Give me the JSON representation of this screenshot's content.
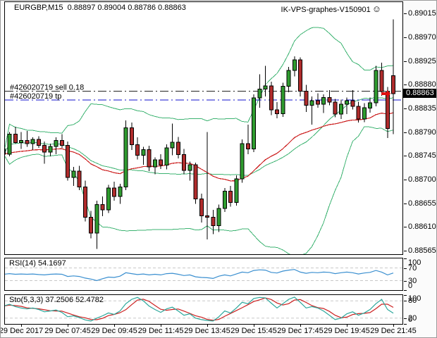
{
  "window": {
    "title": "EURGBP,M15  0.88897 0.89004 0.88786 0.88863",
    "watermark": "IK-VPS-graphes-V150901",
    "smiley": "☺"
  },
  "colors": {
    "bull": "#2f9c2f",
    "bear": "#b02c2c",
    "wick": "#000000",
    "bands": "#3cb371",
    "ma": "#cc2020",
    "rsi": "#3a8fd0",
    "sto_k": "#2aa79b",
    "sto_d": "#cc2020",
    "level_dash": "#c8c8c8",
    "sell_line": "#222222",
    "tp_line": "#1010cc",
    "price_tag_bg": "#000000",
    "price_tag_fg": "#ffffff",
    "arrow": "#e01010"
  },
  "orders": {
    "sell": {
      "label": "#426020719 sell 0.18",
      "price": 0.88868
    },
    "tp": {
      "label": "#426020719 tp",
      "price": 0.88851
    }
  },
  "price_axis": {
    "labels": [
      "0.89015",
      "0.88970",
      "0.88925",
      "0.88880",
      "0.88835",
      "0.88790",
      "0.88745",
      "0.88700",
      "0.88655",
      "0.88610",
      "0.88565"
    ],
    "current": "0.88863"
  },
  "time_axis": {
    "labels": [
      "29 Dec 2017",
      "29 Dec 07:45",
      "29 Dec 09:45",
      "29 Dec 11:45",
      "29 Dec 13:45",
      "29 Dec 15:45",
      "29 Dec 17:45",
      "29 Dec 19:45",
      "29 Dec 21:45"
    ]
  },
  "indicators": {
    "rsi": {
      "label": "RSI(14) 54.1697",
      "axis_labels": [
        "100",
        "70",
        "30",
        "0"
      ],
      "axis_values": [
        100,
        70,
        30,
        0
      ],
      "dash_levels": [
        70,
        30
      ]
    },
    "sto": {
      "label": "Sto(5,3,3) 37.2506 52.4782",
      "axis_labels": [
        "100",
        "80",
        "20",
        "0"
      ],
      "axis_values": [
        100,
        80,
        20,
        0
      ],
      "dash_levels": [
        80,
        20
      ]
    }
  },
  "chart_data": [
    {
      "type": "candlestick",
      "symbol": "EURGBP",
      "timeframe": "M15",
      "title_ohlc": {
        "open": 0.88897,
        "high": 0.89004,
        "low": 0.88786,
        "close": 0.88863
      },
      "ylim": [
        0.88558,
        0.89037
      ],
      "x_start": "29 Dec 05:00",
      "interval_minutes": 15,
      "x_label_indices": [
        3,
        11,
        19,
        27,
        35,
        43,
        51,
        59,
        67
      ],
      "overlays": {
        "bollinger": {
          "period": 20,
          "deviation": 2
        },
        "ma": {
          "period": 28,
          "type": "ema"
        }
      },
      "candles": [
        [
          0.88758,
          0.88768,
          0.8874,
          0.88748
        ],
        [
          0.88748,
          0.8879,
          0.88744,
          0.88786
        ],
        [
          0.88786,
          0.888,
          0.88768,
          0.8877
        ],
        [
          0.8877,
          0.8879,
          0.88758,
          0.88774
        ],
        [
          0.88774,
          0.88792,
          0.88762,
          0.88768
        ],
        [
          0.88768,
          0.8878,
          0.88756,
          0.88776
        ],
        [
          0.88776,
          0.88782,
          0.8876,
          0.88765
        ],
        [
          0.88765,
          0.88772,
          0.8873,
          0.88752
        ],
        [
          0.88752,
          0.88768,
          0.88744,
          0.88763
        ],
        [
          0.88763,
          0.8878,
          0.88748,
          0.88774
        ],
        [
          0.88774,
          0.88786,
          0.8876,
          0.88765
        ],
        [
          0.88765,
          0.88772,
          0.88698,
          0.88704
        ],
        [
          0.88704,
          0.88724,
          0.88688,
          0.88716
        ],
        [
          0.88716,
          0.88726,
          0.8868,
          0.88686
        ],
        [
          0.88686,
          0.88698,
          0.8862,
          0.88628
        ],
        [
          0.88628,
          0.8864,
          0.88588,
          0.88598
        ],
        [
          0.88598,
          0.8866,
          0.88568,
          0.88652
        ],
        [
          0.88652,
          0.88668,
          0.8863,
          0.88642
        ],
        [
          0.88642,
          0.8869,
          0.88636,
          0.88684
        ],
        [
          0.88684,
          0.88696,
          0.8866,
          0.88668
        ],
        [
          0.88668,
          0.88692,
          0.88654,
          0.88686
        ],
        [
          0.88686,
          0.88812,
          0.8868,
          0.88798
        ],
        [
          0.88798,
          0.88808,
          0.88756,
          0.88766
        ],
        [
          0.88766,
          0.8878,
          0.88738,
          0.88746
        ],
        [
          0.88746,
          0.88762,
          0.88728,
          0.88757
        ],
        [
          0.88757,
          0.88764,
          0.88716,
          0.88724
        ],
        [
          0.88724,
          0.88742,
          0.8871,
          0.88737
        ],
        [
          0.88737,
          0.88748,
          0.8872,
          0.88727
        ],
        [
          0.88727,
          0.88767,
          0.88719,
          0.8876
        ],
        [
          0.8876,
          0.88806,
          0.88746,
          0.88771
        ],
        [
          0.88771,
          0.88781,
          0.8874,
          0.88747
        ],
        [
          0.88747,
          0.88758,
          0.8871,
          0.88717
        ],
        [
          0.88717,
          0.88734,
          0.88698,
          0.88728
        ],
        [
          0.88728,
          0.88732,
          0.88654,
          0.88663
        ],
        [
          0.88663,
          0.88673,
          0.88618,
          0.88631
        ],
        [
          0.88631,
          0.8879,
          0.88586,
          0.88628
        ],
        [
          0.88628,
          0.88642,
          0.88596,
          0.88612
        ],
        [
          0.88612,
          0.88652,
          0.886,
          0.88645
        ],
        [
          0.88645,
          0.88684,
          0.88638,
          0.88678
        ],
        [
          0.88678,
          0.88688,
          0.88648,
          0.88656
        ],
        [
          0.88656,
          0.88708,
          0.8865,
          0.88701
        ],
        [
          0.88701,
          0.88776,
          0.88694,
          0.88768
        ],
        [
          0.88768,
          0.88804,
          0.88748,
          0.88758
        ],
        [
          0.88758,
          0.88862,
          0.88752,
          0.88855
        ],
        [
          0.88855,
          0.889,
          0.88836,
          0.88872
        ],
        [
          0.88872,
          0.88916,
          0.88858,
          0.88878
        ],
        [
          0.88878,
          0.88886,
          0.88822,
          0.88832
        ],
        [
          0.88832,
          0.88847,
          0.88816,
          0.88825
        ],
        [
          0.88825,
          0.88884,
          0.88819,
          0.88877
        ],
        [
          0.88877,
          0.88914,
          0.88866,
          0.88907
        ],
        [
          0.88907,
          0.88934,
          0.88896,
          0.88927
        ],
        [
          0.88927,
          0.88932,
          0.88858,
          0.88868
        ],
        [
          0.88868,
          0.8888,
          0.88828,
          0.88841
        ],
        [
          0.88841,
          0.88858,
          0.88804,
          0.8885
        ],
        [
          0.8885,
          0.88864,
          0.88836,
          0.88843
        ],
        [
          0.88843,
          0.88862,
          0.88826,
          0.88856
        ],
        [
          0.88856,
          0.8887,
          0.88841,
          0.88847
        ],
        [
          0.88847,
          0.88853,
          0.88818,
          0.88824
        ],
        [
          0.88824,
          0.88852,
          0.88815,
          0.88843
        ],
        [
          0.88843,
          0.88856,
          0.88824,
          0.8885
        ],
        [
          0.8885,
          0.8887,
          0.88833,
          0.88839
        ],
        [
          0.88839,
          0.88848,
          0.88808,
          0.88815
        ],
        [
          0.88815,
          0.88845,
          0.88809,
          0.88836
        ],
        [
          0.88836,
          0.88856,
          0.88827,
          0.88846
        ],
        [
          0.88846,
          0.88916,
          0.88839,
          0.88907
        ],
        [
          0.88907,
          0.88922,
          0.88859,
          0.88867
        ],
        [
          0.88867,
          0.88876,
          0.88779,
          0.88797
        ],
        [
          0.88897,
          0.89004,
          0.88786,
          0.88863
        ]
      ]
    },
    {
      "type": "line",
      "name": "RSI(14)",
      "current": 54.1697,
      "ylim": [
        0,
        100
      ],
      "levels": [
        70,
        30
      ],
      "values": [
        50,
        52,
        50,
        51,
        50,
        51,
        49,
        48,
        50,
        51,
        50,
        43,
        45,
        43,
        38,
        35,
        30,
        36,
        41,
        40,
        44,
        55,
        52,
        49,
        51,
        48,
        50,
        48,
        52,
        53,
        50,
        46,
        48,
        42,
        40,
        39,
        37,
        44,
        48,
        45,
        51,
        57,
        55,
        62,
        64,
        63,
        56,
        54,
        60,
        63,
        65,
        57,
        53,
        56,
        55,
        57,
        56,
        52,
        55,
        57,
        55,
        51,
        54,
        56,
        62,
        57,
        48,
        54
      ]
    },
    {
      "type": "line",
      "name": "Sto(5,3,3)",
      "k_current": 37.2506,
      "d_current": 52.4782,
      "ylim": [
        0,
        100
      ],
      "levels": [
        80,
        20
      ],
      "d_smoothing": 3,
      "k_values": [
        62,
        68,
        60,
        55,
        52,
        55,
        50,
        42,
        45,
        48,
        40,
        25,
        28,
        22,
        14,
        10,
        20,
        28,
        38,
        33,
        45,
        70,
        85,
        92,
        80,
        62,
        50,
        40,
        52,
        58,
        45,
        30,
        35,
        20,
        15,
        12,
        10,
        25,
        45,
        38,
        55,
        75,
        70,
        88,
        92,
        90,
        72,
        55,
        70,
        85,
        93,
        75,
        55,
        60,
        55,
        45,
        30,
        15,
        20,
        35,
        42,
        30,
        38,
        50,
        70,
        85,
        50,
        37
      ]
    }
  ]
}
